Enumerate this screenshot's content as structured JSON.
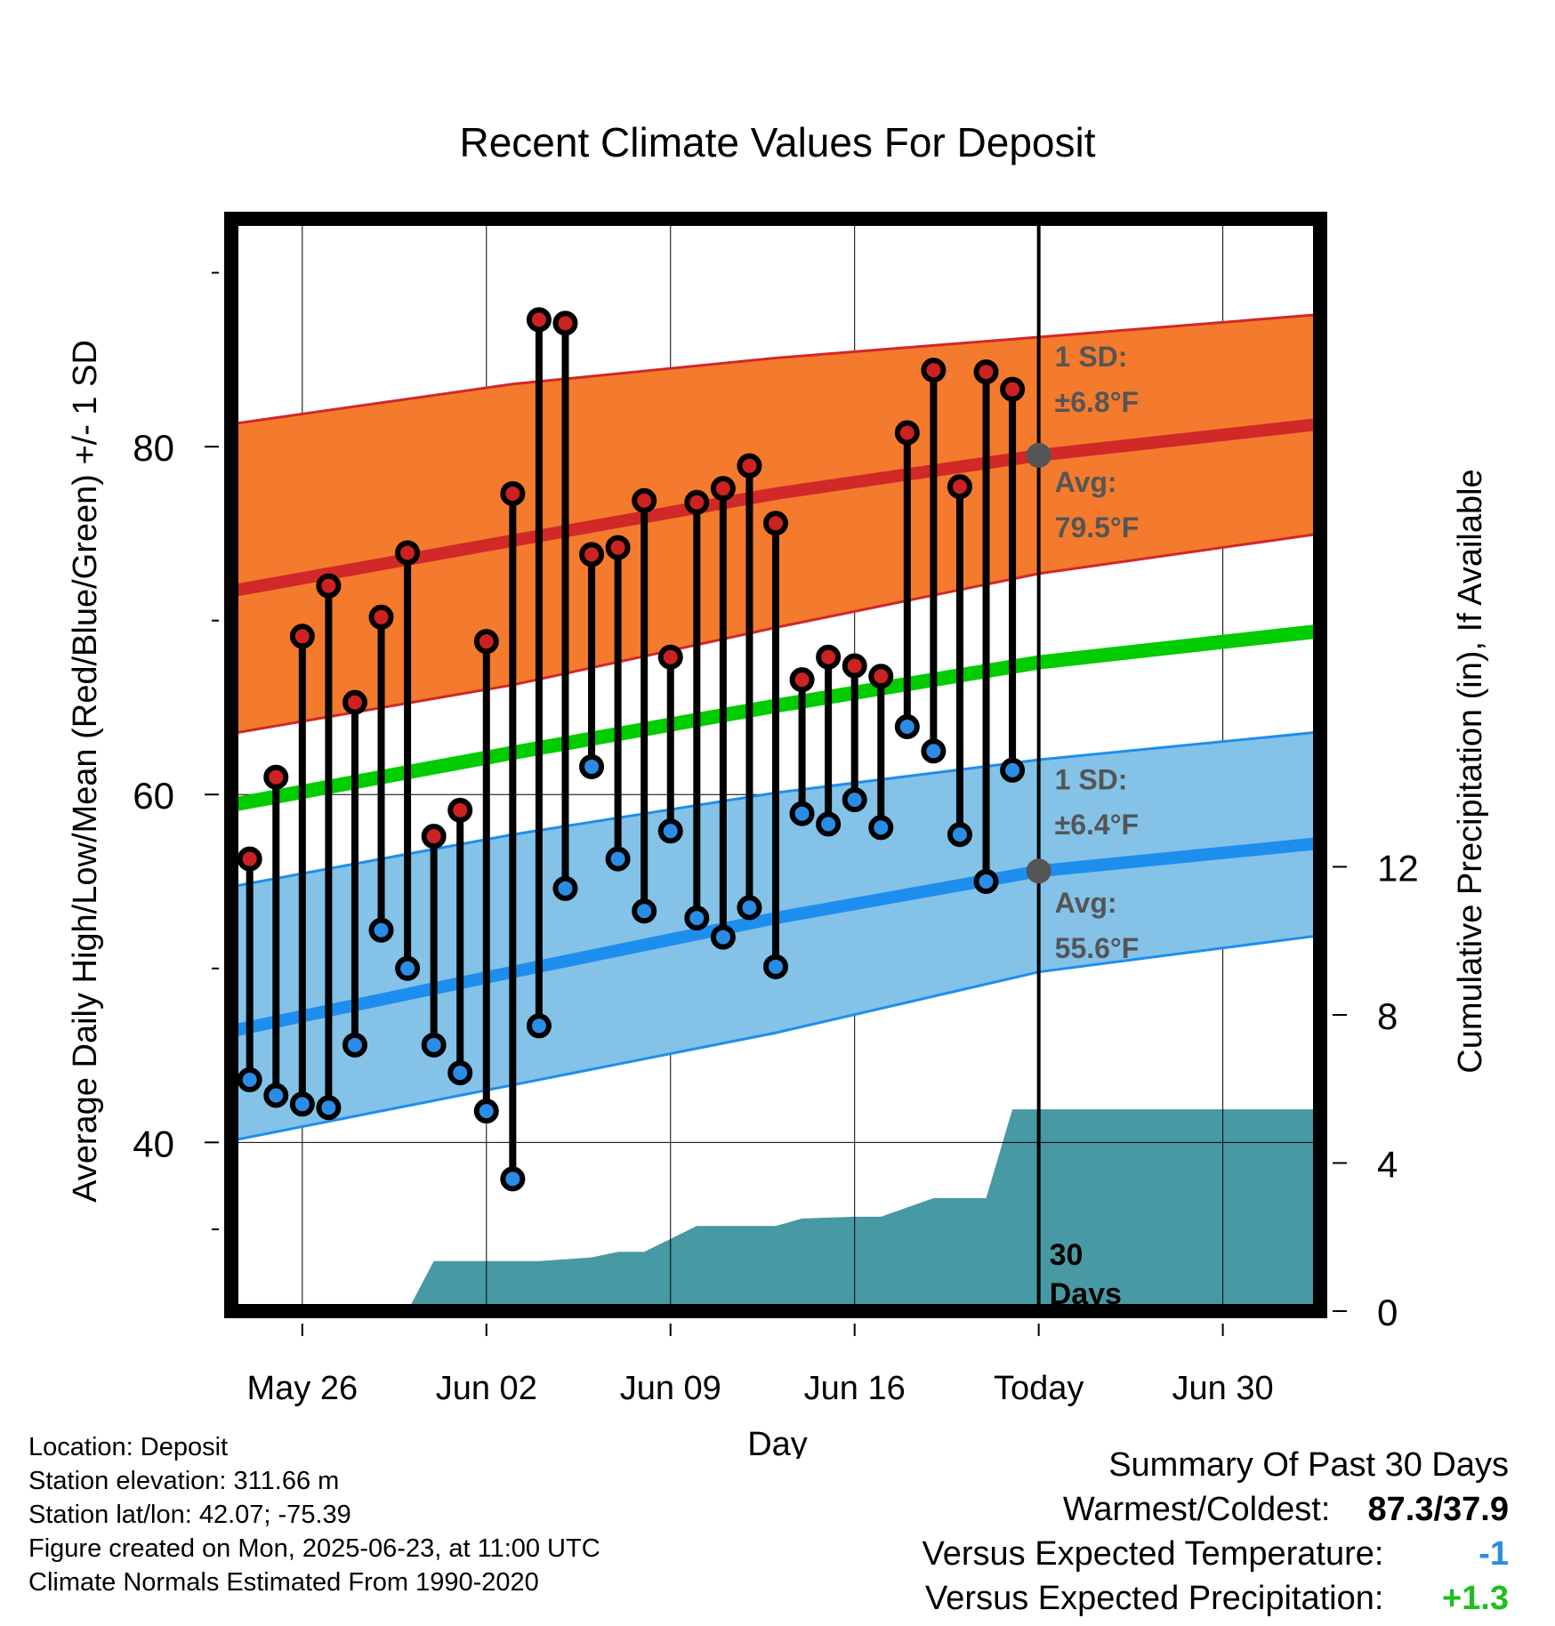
{
  "title": "Recent Climate Values For Deposit",
  "chart_data": {
    "type": "line",
    "title": "Recent Climate Values For Deposit",
    "xlabel": "Day",
    "ylabel_left": "Average Daily High/Low/Mean (Red/Blue/Green) +/- 1 SD",
    "ylabel_right": "Cumulative Precipitation (in), If Available",
    "x_ticks": [
      "May 26",
      "Jun 02",
      "Jun 09",
      "Jun 16",
      "Today",
      "Jun 30"
    ],
    "x_tick_days": [
      2,
      9,
      16,
      23,
      30,
      37
    ],
    "x_range_days": [
      -0.7,
      40.7
    ],
    "ylim_left": [
      30.3,
      93.1
    ],
    "ylim_right": [
      0,
      29.5
    ],
    "y_ticks_left": [
      "40",
      "60",
      "80"
    ],
    "y_ticks_right": [
      "0",
      "4",
      "8",
      "12"
    ],
    "y_ticks_right_values": [
      0,
      4,
      8,
      12
    ],
    "grid": true,
    "daily": [
      {
        "day": 0,
        "high": 56.3,
        "low": 43.6
      },
      {
        "day": 1,
        "high": 61.0,
        "low": 42.7
      },
      {
        "day": 2,
        "high": 69.1,
        "low": 42.2
      },
      {
        "day": 3,
        "high": 72.0,
        "low": 42.0
      },
      {
        "day": 4,
        "high": 65.3,
        "low": 45.6
      },
      {
        "day": 5,
        "high": 70.2,
        "low": 52.2
      },
      {
        "day": 6,
        "high": 73.9,
        "low": 50.0
      },
      {
        "day": 7,
        "high": 57.6,
        "low": 45.6
      },
      {
        "day": 8,
        "high": 59.1,
        "low": 44.0
      },
      {
        "day": 9,
        "high": 68.8,
        "low": 41.8
      },
      {
        "day": 10,
        "high": 77.3,
        "low": 37.9
      },
      {
        "day": 11,
        "high": 87.3,
        "low": 46.7
      },
      {
        "day": 12,
        "high": 87.1,
        "low": 54.6
      },
      {
        "day": 13,
        "high": 73.8,
        "low": 61.6
      },
      {
        "day": 14,
        "high": 74.2,
        "low": 56.3
      },
      {
        "day": 15,
        "high": 76.9,
        "low": 53.3
      },
      {
        "day": 16,
        "high": 67.9,
        "low": 57.9
      },
      {
        "day": 17,
        "high": 76.8,
        "low": 52.9
      },
      {
        "day": 18,
        "high": 77.6,
        "low": 51.8
      },
      {
        "day": 19,
        "high": 78.9,
        "low": 53.5
      },
      {
        "day": 20,
        "high": 75.6,
        "low": 50.1
      },
      {
        "day": 21,
        "high": 66.6,
        "low": 58.9
      },
      {
        "day": 22,
        "high": 67.9,
        "low": 58.3
      },
      {
        "day": 23,
        "high": 67.4,
        "low": 59.7
      },
      {
        "day": 24,
        "high": 66.8,
        "low": 58.1
      },
      {
        "day": 25,
        "high": 80.8,
        "low": 63.9
      },
      {
        "day": 26,
        "high": 84.4,
        "low": 62.5
      },
      {
        "day": 27,
        "high": 77.7,
        "low": 57.7
      },
      {
        "day": 28,
        "high": 84.3,
        "low": 55.0
      },
      {
        "day": 29,
        "high": 83.3,
        "low": 61.4
      }
    ],
    "normals": {
      "days": [
        -0.7,
        10,
        20,
        30,
        40.7
      ],
      "high_avg": [
        71.7,
        74.6,
        77.3,
        79.5,
        81.3
      ],
      "high_upper": [
        81.3,
        83.6,
        85.1,
        86.3,
        87.6
      ],
      "high_lower": [
        63.5,
        66.3,
        69.6,
        72.7,
        75.0
      ],
      "low_avg": [
        46.4,
        49.8,
        52.9,
        55.6,
        57.2
      ],
      "low_upper": [
        54.7,
        57.7,
        60.1,
        62.0,
        63.6
      ],
      "low_lower": [
        40.1,
        43.3,
        46.3,
        49.8,
        51.9
      ],
      "mean_avg": [
        59.4,
        62.4,
        65.1,
        67.6,
        69.4
      ]
    },
    "precip_cumulative": [
      {
        "day": -0.7,
        "value": 0
      },
      {
        "day": 6,
        "value": 0
      },
      {
        "day": 7,
        "value": 1.35
      },
      {
        "day": 11,
        "value": 1.35
      },
      {
        "day": 13,
        "value": 1.45
      },
      {
        "day": 14,
        "value": 1.6
      },
      {
        "day": 15,
        "value": 1.6
      },
      {
        "day": 16,
        "value": 1.95
      },
      {
        "day": 17,
        "value": 2.3
      },
      {
        "day": 20,
        "value": 2.3
      },
      {
        "day": 21,
        "value": 2.5
      },
      {
        "day": 23,
        "value": 2.55
      },
      {
        "day": 24,
        "value": 2.55
      },
      {
        "day": 26,
        "value": 3.05
      },
      {
        "day": 28,
        "value": 3.05
      },
      {
        "day": 29,
        "value": 5.45
      },
      {
        "day": 40.7,
        "value": 5.45
      }
    ],
    "annotations": {
      "high_sd": "1 SD:",
      "high_sd_value": "±6.8°F",
      "high_avg_label": "Avg:",
      "high_avg_value": "79.5°F",
      "high_avg_today": 79.5,
      "low_sd": "1 SD:",
      "low_sd_value": "±6.4°F",
      "low_avg_label": "Avg:",
      "low_avg_value": "55.6°F",
      "low_avg_today": 55.6,
      "today_line": "30\nDays",
      "today_day": 30
    },
    "colors": {
      "high_band": "#f47a2e",
      "high_line": "#d12828",
      "low_band": "#84c2e8",
      "low_line": "#1e8eee",
      "mean_line": "#00cc00",
      "precip_fill": "#4799a3",
      "high_marker": "#cc2222",
      "low_marker": "#2b8ce6",
      "annotation": "#555555"
    }
  },
  "info": {
    "location": "Location: Deposit",
    "elevation": "Station elevation: 311.66 m",
    "latlon": "Station lat/lon: 42.07; -75.39",
    "created": "Figure created on Mon, 2025-06-23, at 11:00 UTC",
    "normals": "Climate Normals Estimated From 1990-2020"
  },
  "summary": {
    "heading": "Summary Of Past 30 Days",
    "warm_cold_label": "Warmest/Coldest:",
    "warm_cold_value": "87.3/37.9",
    "temp_label": "Versus Expected Temperature:",
    "temp_value": "-1",
    "temp_color": "#2b8ce6",
    "precip_label": "Versus Expected Precipitation:",
    "precip_value": "+1.3",
    "precip_color": "#1fbf1f"
  }
}
